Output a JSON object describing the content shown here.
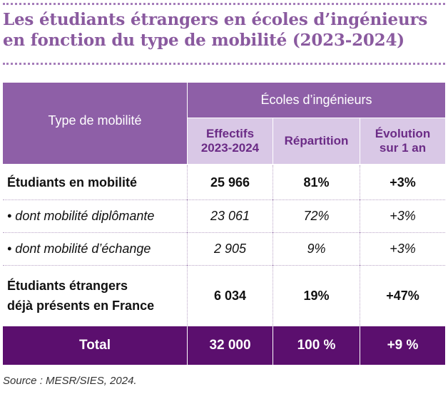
{
  "title": "Les étudiants étrangers en écoles d’ingénieurs\nen fonction du type de mobilité (2023-2024)",
  "table": {
    "header": {
      "row_label": "Type de mobilité",
      "group": "Écoles d’ingénieurs",
      "col1": "Effectifs\n2023-2024",
      "col2": "Répartition",
      "col3": "Évolution\nsur 1 an"
    },
    "rows": [
      {
        "label": "Étudiants en mobilité",
        "effectifs": "25 966",
        "repartition": "81%",
        "evolution": "+3%"
      },
      {
        "label": "• dont mobilité diplômante",
        "effectifs": "23 061",
        "repartition": "72%",
        "evolution": "+3%"
      },
      {
        "label": "• dont mobilité d’échange",
        "effectifs": "2 905",
        "repartition": "9%",
        "evolution": "+3%"
      },
      {
        "label": "Étudiants étrangers\ndéjà présents en France",
        "effectifs": "6 034",
        "repartition": "19%",
        "evolution": "+47%"
      }
    ],
    "total": {
      "label": "Total",
      "effectifs": "32 000",
      "repartition": "100 %",
      "evolution": "+9 %"
    }
  },
  "source": "Source : MESR/SIES, 2024.",
  "colors": {
    "title": "#8a5a9f",
    "header_bg": "#8e5fa7",
    "subheader_bg": "#d9c8e6",
    "subheader_text": "#6b2b86",
    "total_bg": "#5b0f6e"
  }
}
